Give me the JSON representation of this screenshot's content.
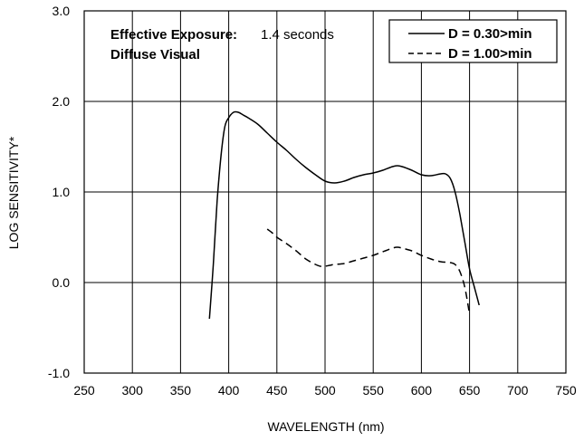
{
  "chart_data": {
    "type": "line",
    "xlabel": "WAVELENGTH (nm)",
    "ylabel": "LOG SENSITIVITY*",
    "xlim": [
      250,
      750
    ],
    "ylim": [
      -1.0,
      3.0
    ],
    "x_ticks": [
      "250",
      "300",
      "350",
      "400",
      "450",
      "500",
      "550",
      "600",
      "650",
      "700",
      "750"
    ],
    "y_ticks": [
      "-1.0",
      "0.0",
      "1.0",
      "2.0",
      "3.0"
    ],
    "grid": true,
    "annotation": {
      "label": "Effective Exposure:",
      "value": "1.4 seconds",
      "line2": "Diffuse Visual"
    },
    "legend_position": "top-right",
    "series": [
      {
        "name": "D = 0.30>min",
        "style": "solid",
        "x": [
          380,
          384,
          388,
          392,
          396,
          400,
          405,
          410,
          415,
          420,
          430,
          440,
          450,
          460,
          470,
          480,
          490,
          500,
          510,
          520,
          530,
          540,
          550,
          560,
          570,
          575,
          580,
          590,
          600,
          610,
          620,
          625,
          630,
          635,
          640,
          645,
          650,
          655,
          660
        ],
        "y": [
          -0.4,
          0.2,
          0.9,
          1.4,
          1.72,
          1.82,
          1.88,
          1.88,
          1.85,
          1.82,
          1.75,
          1.65,
          1.55,
          1.46,
          1.36,
          1.27,
          1.19,
          1.12,
          1.1,
          1.12,
          1.16,
          1.19,
          1.21,
          1.24,
          1.28,
          1.29,
          1.28,
          1.24,
          1.19,
          1.18,
          1.2,
          1.2,
          1.15,
          1.0,
          0.75,
          0.45,
          0.15,
          -0.05,
          -0.25
        ]
      },
      {
        "name": "D = 1.00>min",
        "style": "dashed",
        "x": [
          440,
          445,
          450,
          460,
          470,
          480,
          490,
          495,
          500,
          505,
          510,
          520,
          530,
          540,
          550,
          560,
          570,
          575,
          580,
          590,
          600,
          610,
          620,
          630,
          635,
          640,
          645,
          650
        ],
        "y": [
          0.59,
          0.55,
          0.5,
          0.43,
          0.35,
          0.26,
          0.2,
          0.18,
          0.18,
          0.19,
          0.2,
          0.21,
          0.24,
          0.27,
          0.3,
          0.34,
          0.38,
          0.39,
          0.38,
          0.35,
          0.3,
          0.26,
          0.23,
          0.22,
          0.2,
          0.12,
          -0.05,
          -0.35
        ]
      }
    ]
  }
}
